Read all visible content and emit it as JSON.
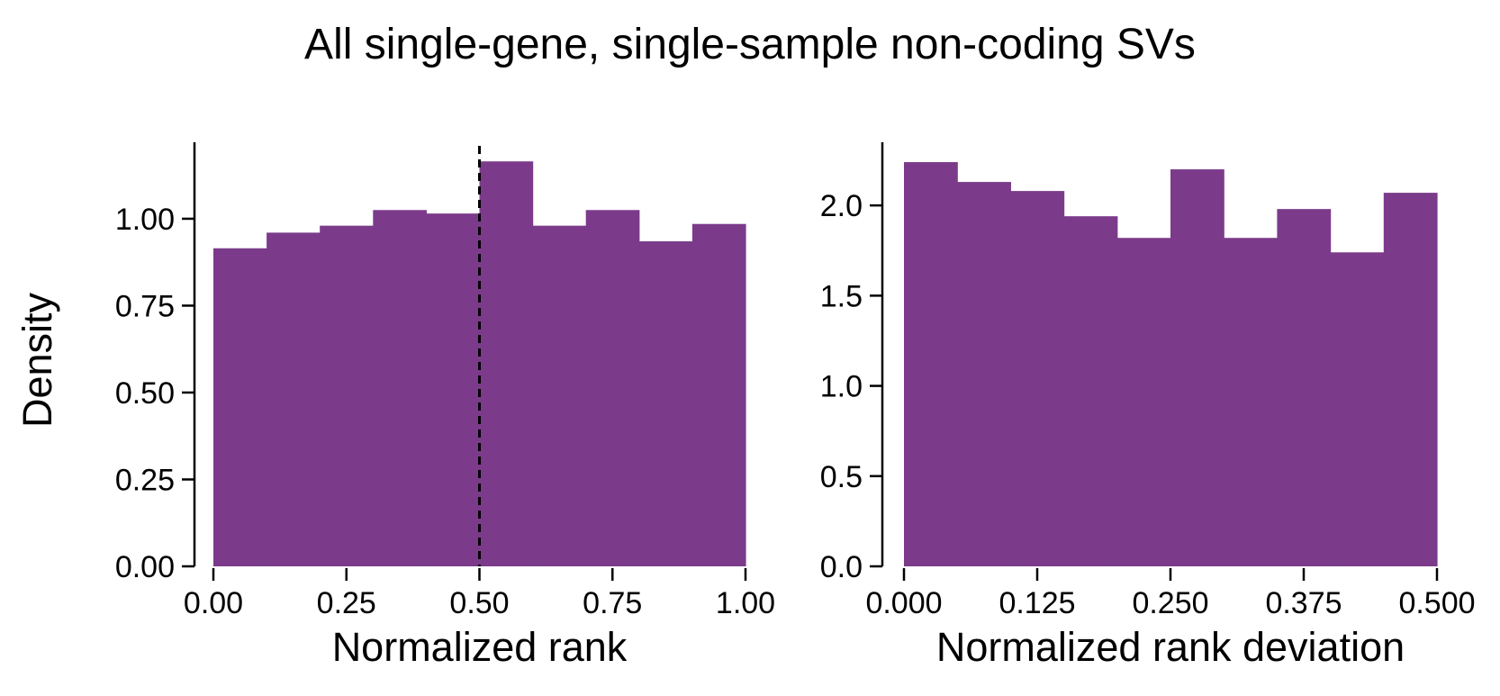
{
  "figure": {
    "title": "All single-gene, single-sample non-coding SVs",
    "bar_color": "#7b3b8a"
  },
  "chart_data": [
    {
      "type": "bar",
      "id": "rank",
      "title": "",
      "xlabel": "Normalized rank",
      "ylabel": "Density",
      "xlim": [
        0,
        1
      ],
      "ylim": [
        0,
        1.22
      ],
      "xticks": [
        0,
        0.25,
        0.5,
        0.75,
        1.0
      ],
      "xtick_labels": [
        "0.00",
        "0.25",
        "0.50",
        "0.75",
        "1.00"
      ],
      "yticks": [
        0,
        0.25,
        0.5,
        0.75,
        1.0
      ],
      "ytick_labels": [
        "0.00",
        "0.25",
        "0.50",
        "0.75",
        "1.00"
      ],
      "bin_edges": [
        0,
        0.1,
        0.2,
        0.3,
        0.4,
        0.5,
        0.6,
        0.7,
        0.8,
        0.9,
        1.0
      ],
      "values": [
        0.915,
        0.96,
        0.98,
        1.025,
        1.015,
        1.165,
        0.98,
        1.025,
        0.935,
        0.985
      ],
      "reference_line": {
        "x": 0.5,
        "style": "dashed"
      },
      "grid": false,
      "legend": "none"
    },
    {
      "type": "bar",
      "id": "deviation",
      "title": "",
      "xlabel": "Normalized rank deviation",
      "ylabel": "",
      "xlim": [
        0,
        0.5
      ],
      "ylim": [
        0,
        2.35
      ],
      "xticks": [
        0,
        0.125,
        0.25,
        0.375,
        0.5
      ],
      "xtick_labels": [
        "0.000",
        "0.125",
        "0.250",
        "0.375",
        "0.500"
      ],
      "yticks": [
        0,
        0.5,
        1.0,
        1.5,
        2.0
      ],
      "ytick_labels": [
        "0.0",
        "0.5",
        "1.0",
        "1.5",
        "2.0"
      ],
      "bin_edges": [
        0,
        0.05,
        0.1,
        0.15,
        0.2,
        0.25,
        0.3,
        0.35,
        0.4,
        0.45,
        0.5
      ],
      "values": [
        2.24,
        2.13,
        2.08,
        1.94,
        1.82,
        2.2,
        1.82,
        1.98,
        1.74,
        2.07
      ],
      "grid": false,
      "legend": "none"
    }
  ]
}
